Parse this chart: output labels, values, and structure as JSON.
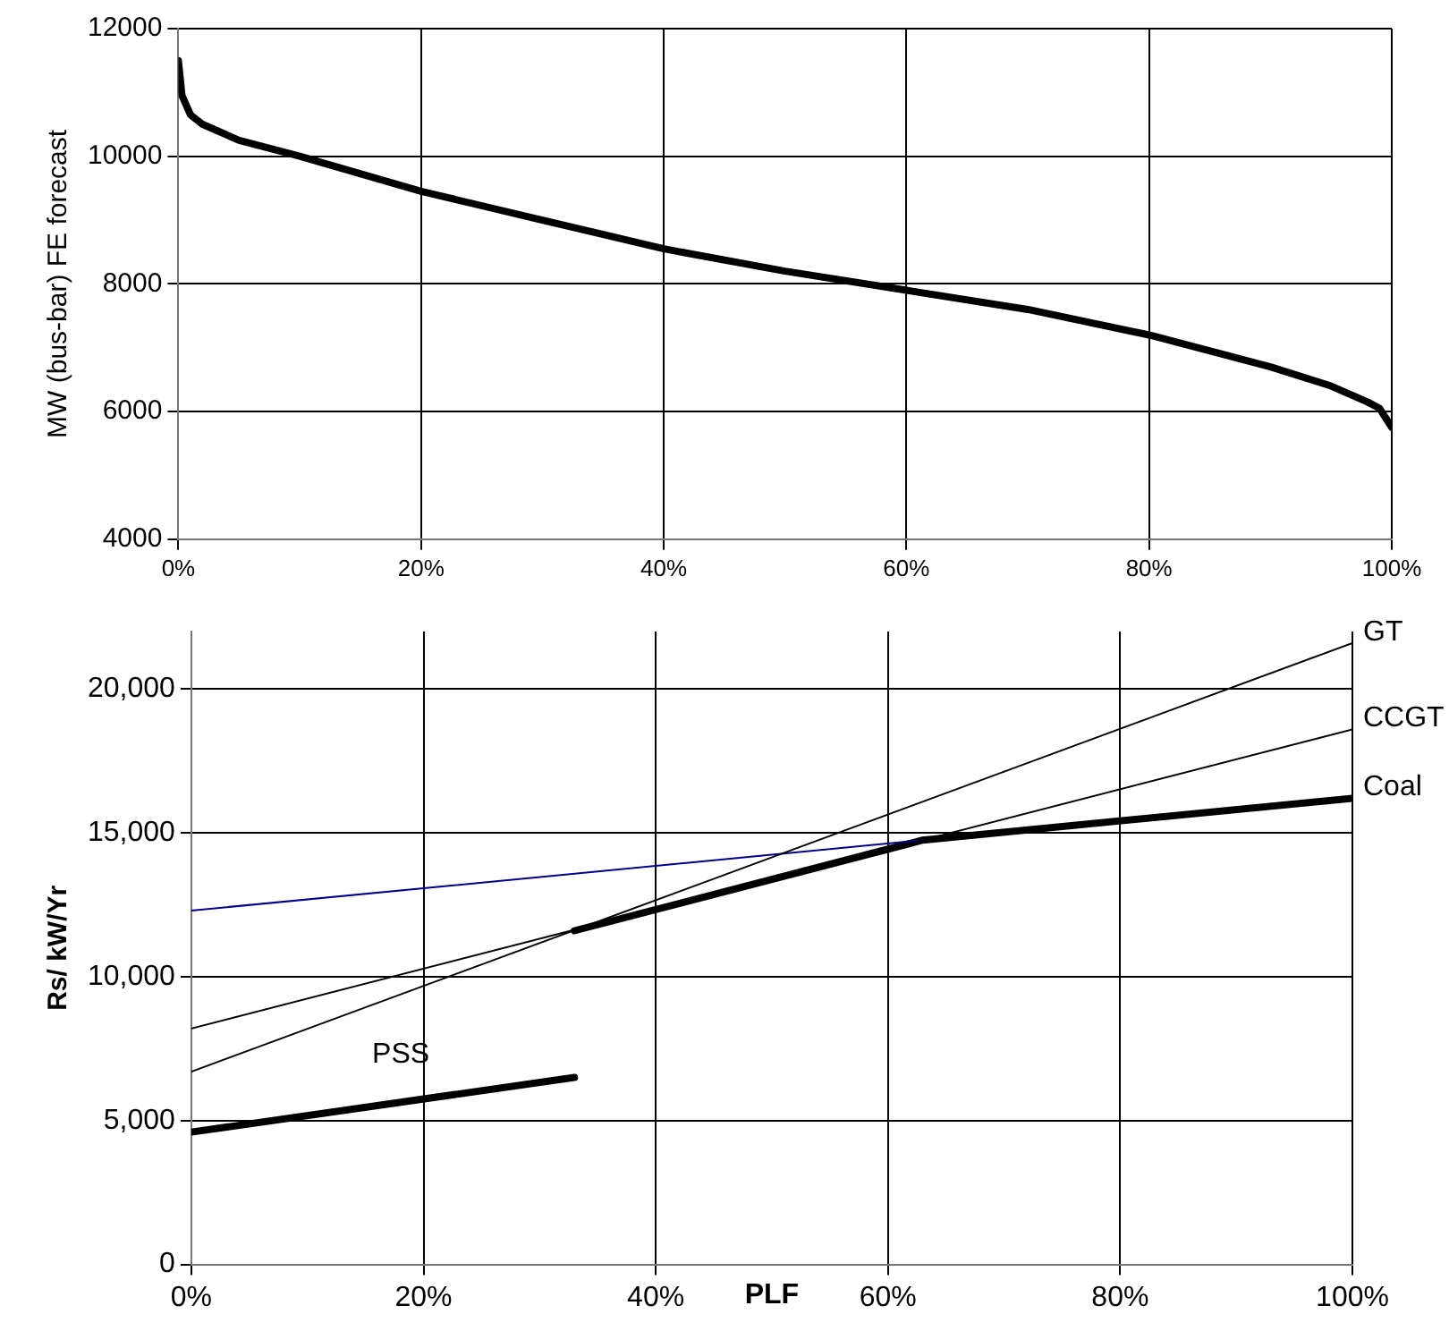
{
  "chart_data": [
    {
      "type": "line",
      "ylabel": "MW (bus-bar) FE forecast",
      "grid": true,
      "legend": false,
      "marker": "none",
      "line_style": "solid",
      "xlim": [
        0,
        100
      ],
      "xticks": [
        {
          "value": 0,
          "label": "0%"
        },
        {
          "value": 20,
          "label": "20%"
        },
        {
          "value": 40,
          "label": "40%"
        },
        {
          "value": 60,
          "label": "60%"
        },
        {
          "value": 80,
          "label": "80%"
        },
        {
          "value": 100,
          "label": "100%"
        }
      ],
      "ylim": [
        4000,
        12000
      ],
      "yticks": [
        4000,
        6000,
        8000,
        10000,
        12000
      ],
      "series": [
        {
          "color": "#000000",
          "x": [
            0,
            0.3,
            1,
            2,
            5,
            10,
            20,
            30,
            40,
            50,
            60,
            70,
            80,
            90,
            95,
            98,
            99,
            99.5,
            100
          ],
          "values": [
            11500,
            10950,
            10650,
            10500,
            10250,
            10000,
            9450,
            9000,
            8550,
            8200,
            7900,
            7600,
            7200,
            6700,
            6400,
            6150,
            6050,
            5900,
            5750
          ]
        }
      ]
    },
    {
      "type": "line",
      "xlabel": "PLF",
      "ylabel": "Rs/ kW/Yr",
      "grid": true,
      "legend": false,
      "marker": "none",
      "line_style": "solid",
      "xlim": [
        0,
        100
      ],
      "xticks": [
        {
          "value": 0,
          "label": "0%"
        },
        {
          "value": 20,
          "label": "20%"
        },
        {
          "value": 40,
          "label": "40%"
        },
        {
          "value": 60,
          "label": "60%"
        },
        {
          "value": 80,
          "label": "80%"
        },
        {
          "value": 100,
          "label": "100%"
        }
      ],
      "ylim": [
        0,
        22000
      ],
      "yticks": [
        {
          "value": 0,
          "label": "0"
        },
        {
          "value": 5000,
          "label": "5,000"
        },
        {
          "value": 10000,
          "label": "10,000"
        },
        {
          "value": 15000,
          "label": "15,000"
        },
        {
          "value": 20000,
          "label": "20,000"
        }
      ],
      "series": [
        {
          "name": "GT",
          "color": "#000000",
          "x": [
            0,
            100
          ],
          "values": [
            6700,
            21600
          ]
        },
        {
          "name": "CCGT",
          "color": "#000000",
          "x": [
            0,
            100
          ],
          "values": [
            8200,
            18600
          ]
        },
        {
          "color": "#00008b",
          "x": [
            0,
            63
          ],
          "values": [
            12300,
            14750
          ]
        },
        {
          "name": "Coal",
          "color": "#000000",
          "x": [
            33,
            63,
            100
          ],
          "values": [
            11600,
            14750,
            16200
          ]
        },
        {
          "name": "PSS",
          "color": "#000000",
          "x": [
            0,
            33
          ],
          "values": [
            4600,
            6500
          ]
        }
      ]
    }
  ]
}
